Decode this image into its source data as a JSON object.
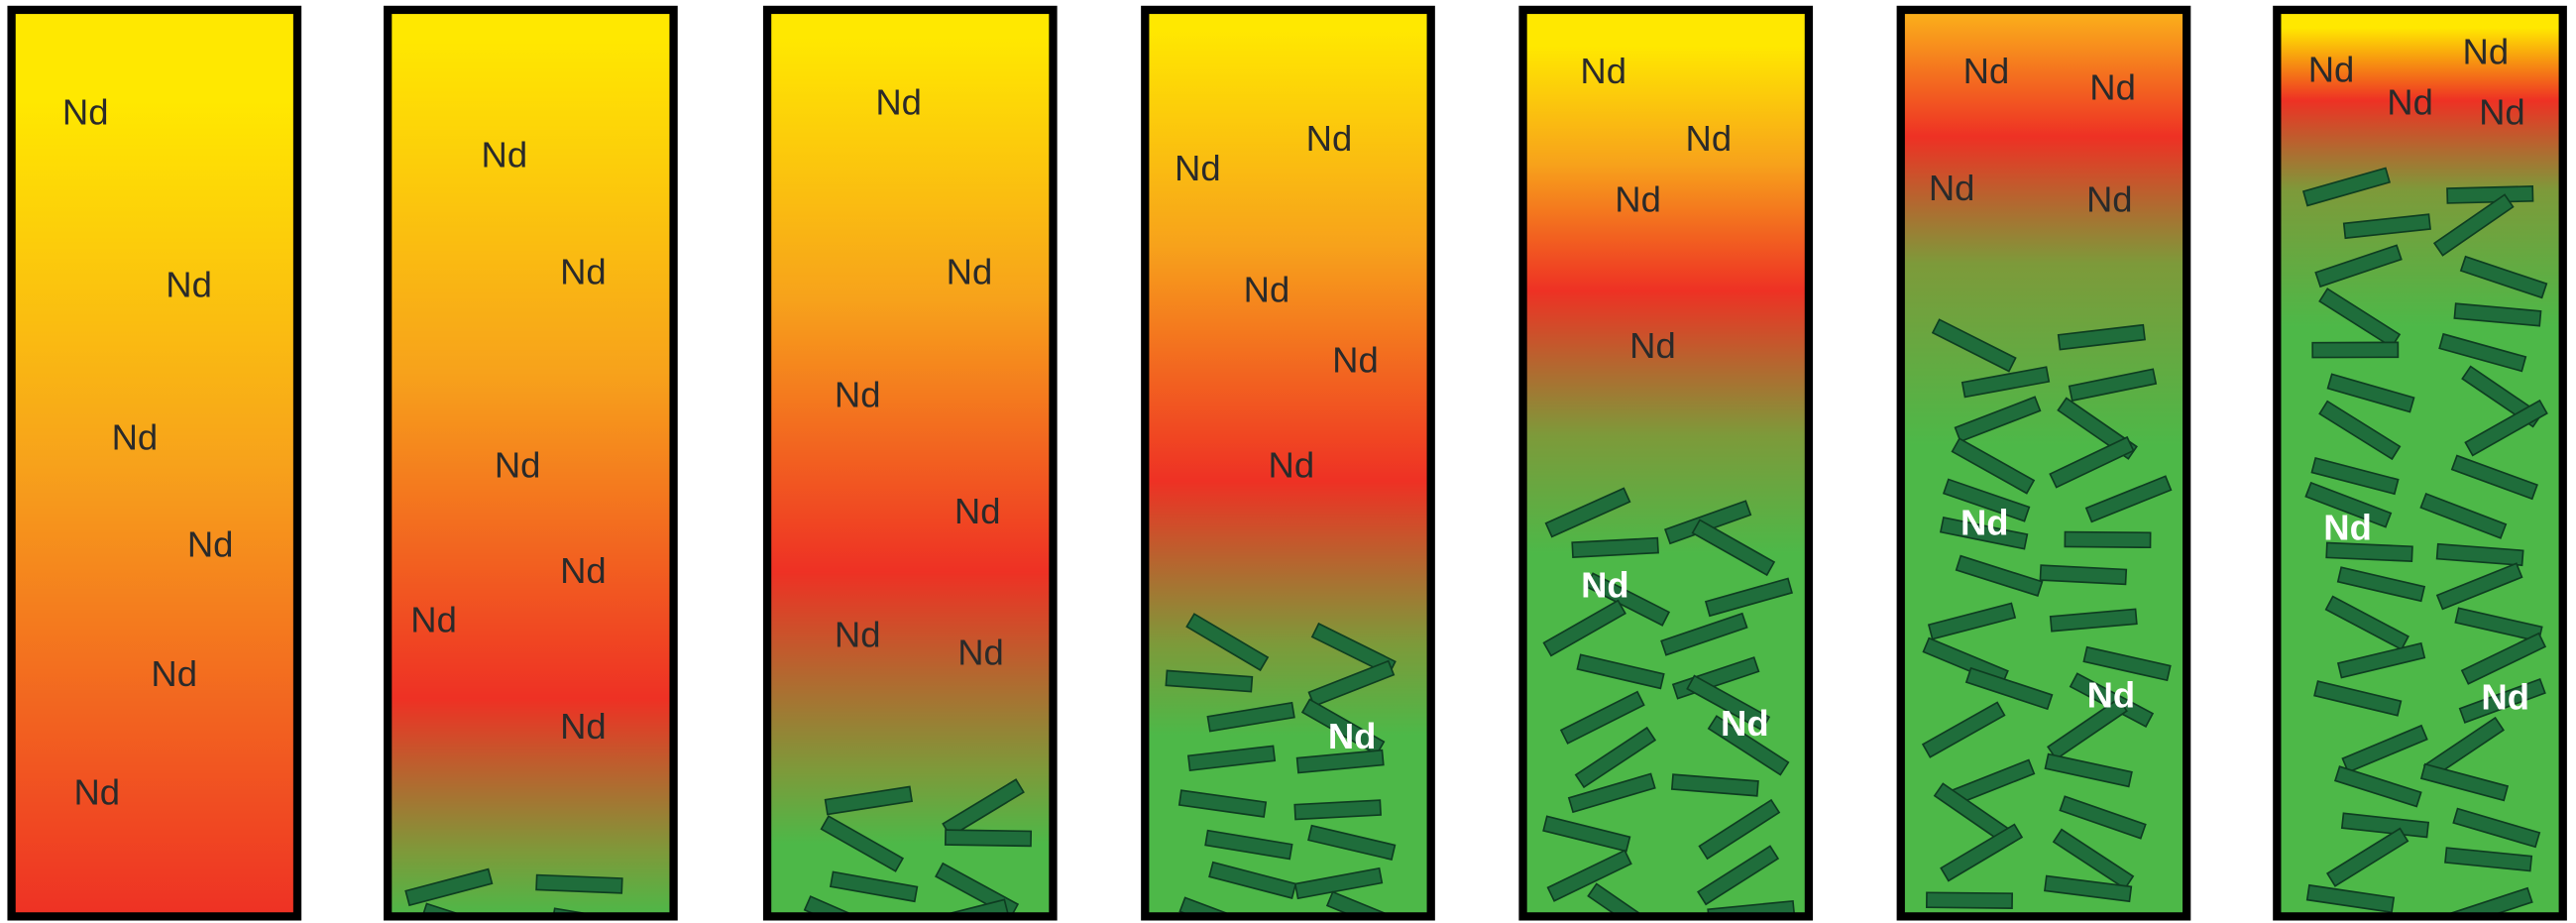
{
  "panels": [
    {
      "labels": [
        "Nd",
        "Nd",
        "Nd",
        "Nd",
        "Nd",
        "Nd"
      ]
    },
    {
      "labels": [
        "Nd",
        "Nd",
        "Nd",
        "Nd",
        "Nd",
        "Nd"
      ]
    },
    {
      "labels": [
        "Nd",
        "Nd",
        "Nd",
        "Nd",
        "Nd",
        "Nd"
      ]
    },
    {
      "labels": [
        "Nd",
        "Nd",
        "Nd",
        "Nd",
        "Nd",
        "Nd"
      ]
    },
    {
      "labels": [
        "Nd",
        "Nd",
        "Nd",
        "Nd",
        "Nd",
        "Nd"
      ]
    },
    {
      "labels": [
        "Nd",
        "Nd",
        "Nd",
        "Nd",
        "Nd",
        "Nd"
      ]
    },
    {
      "labels": [
        "Nd",
        "Nd",
        "Nd",
        "Nd",
        "Nd",
        "Nd"
      ]
    }
  ]
}
